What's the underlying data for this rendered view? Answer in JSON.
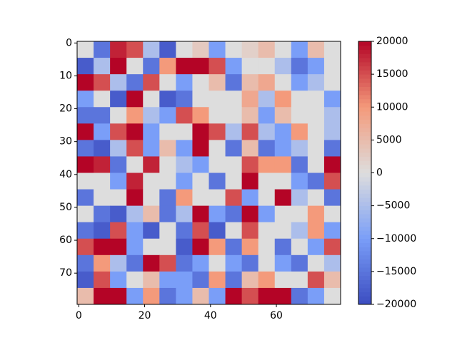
{
  "chart_data": {
    "type": "heatmap",
    "cmap": "coolwarm",
    "xlim": [
      -0.5,
      79.5
    ],
    "ylim": [
      79.5,
      -0.5
    ],
    "xticks": [
      0,
      20,
      40,
      60
    ],
    "yticks": [
      0,
      10,
      20,
      30,
      40,
      50,
      60,
      70
    ],
    "z": [
      [
        0,
        -15000,
        18000,
        15000,
        -5000,
        -18000,
        0,
        3000,
        -10000,
        0,
        2000,
        5000,
        0,
        -10000,
        5000,
        0
      ],
      [
        -18000,
        -5000,
        20000,
        0,
        -15000,
        10000,
        20000,
        20000,
        15000,
        -10000,
        0,
        0,
        -5000,
        -15000,
        -10000,
        0
      ],
      [
        20000,
        15000,
        -5000,
        -15000,
        15000,
        0,
        -10000,
        0,
        5000,
        -15000,
        5000,
        8000,
        0,
        -10000,
        -5000,
        0
      ],
      [
        -10000,
        0,
        -18000,
        20000,
        0,
        -18000,
        -15000,
        0,
        0,
        0,
        8000,
        -5000,
        10000,
        0,
        0,
        -10000
      ],
      [
        -15000,
        -15000,
        0,
        10000,
        -5000,
        -10000,
        15000,
        10000,
        0,
        0,
        5000,
        -10000,
        5000,
        0,
        0,
        -5000
      ],
      [
        20000,
        -10000,
        15000,
        20000,
        -10000,
        0,
        0,
        20000,
        15000,
        -5000,
        15000,
        -5000,
        -10000,
        10000,
        0,
        -5000
      ],
      [
        -15000,
        -18000,
        -5000,
        15000,
        -10000,
        5000,
        -10000,
        20000,
        0,
        -15000,
        5000,
        -15000,
        -10000,
        -5000,
        0,
        -15000
      ],
      [
        20000,
        18000,
        -15000,
        0,
        18000,
        0,
        -5000,
        -10000,
        0,
        0,
        15000,
        10000,
        10000,
        -15000,
        0,
        20000
      ],
      [
        0,
        0,
        -10000,
        18000,
        0,
        0,
        -10000,
        0,
        -15000,
        0,
        20000,
        0,
        0,
        -10000,
        -15000,
        15000
      ],
      [
        -15000,
        0,
        0,
        20000,
        0,
        -15000,
        10000,
        0,
        0,
        15000,
        -10000,
        0,
        20000,
        -5000,
        0,
        -15000
      ],
      [
        0,
        -15000,
        -18000,
        -5000,
        5000,
        -15000,
        -5000,
        20000,
        -10000,
        -15000,
        20000,
        -10000,
        0,
        0,
        10000,
        0
      ],
      [
        -15000,
        -18000,
        15000,
        -10000,
        -18000,
        0,
        -15000,
        15000,
        -18000,
        0,
        15000,
        0,
        0,
        -5000,
        10000,
        -10000
      ],
      [
        15000,
        20000,
        20000,
        -10000,
        0,
        0,
        -18000,
        20000,
        10000,
        -15000,
        10000,
        0,
        -15000,
        0,
        -10000,
        15000
      ],
      [
        -15000,
        10000,
        -5000,
        -15000,
        20000,
        15000,
        -15000,
        -10000,
        0,
        -10000,
        -15000,
        0,
        -10000,
        -15000,
        0,
        -5000
      ],
      [
        -18000,
        15000,
        -10000,
        0,
        5000,
        -10000,
        -10000,
        -15000,
        10000,
        -15000,
        5000,
        10000,
        0,
        0,
        15000,
        5000
      ],
      [
        5000,
        20000,
        20000,
        -10000,
        10000,
        -15000,
        -10000,
        5000,
        -10000,
        20000,
        15000,
        20000,
        20000,
        -15000,
        -10000,
        0
      ]
    ],
    "colorbar": {
      "clim": [
        -20000,
        20000
      ],
      "ticks": [
        {
          "value": -20000,
          "label": "−20000"
        },
        {
          "value": -15000,
          "label": "−15000"
        },
        {
          "value": -10000,
          "label": "−10000"
        },
        {
          "value": -5000,
          "label": "−5000"
        },
        0,
        5000,
        10000,
        15000,
        20000
      ]
    }
  }
}
